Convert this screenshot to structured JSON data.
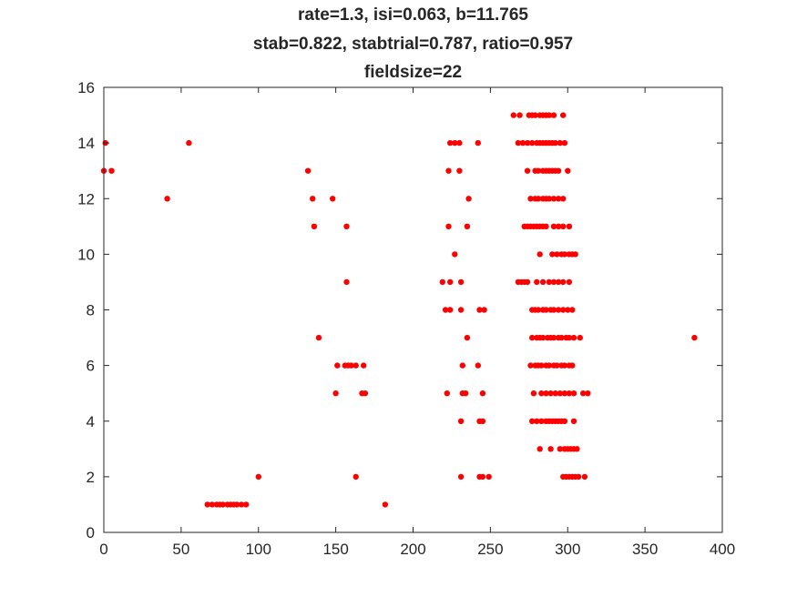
{
  "chart_data": {
    "type": "scatter",
    "title": [
      "rate=1.3, isi=0.063, b=11.765",
      "stab=0.822, stabtrial=0.787, ratio=0.957",
      "fieldsize=22"
    ],
    "xlabel": "",
    "ylabel": "",
    "xlim": [
      0,
      400
    ],
    "ylim": [
      0,
      16
    ],
    "xticks": [
      0,
      50,
      100,
      150,
      200,
      250,
      300,
      350,
      400
    ],
    "yticks": [
      0,
      2,
      4,
      6,
      8,
      10,
      12,
      14,
      16
    ],
    "grid": false,
    "marker_color": "#ff0000",
    "axis_color": "#262626",
    "points": [
      [
        67,
        1
      ],
      [
        70,
        1
      ],
      [
        73,
        1
      ],
      [
        75,
        1
      ],
      [
        77,
        1
      ],
      [
        80,
        1
      ],
      [
        82,
        1
      ],
      [
        84,
        1
      ],
      [
        86,
        1
      ],
      [
        89,
        1
      ],
      [
        92,
        1
      ],
      [
        182,
        1
      ],
      [
        100,
        2
      ],
      [
        163,
        2
      ],
      [
        231,
        2
      ],
      [
        243,
        2
      ],
      [
        245,
        2
      ],
      [
        249,
        2
      ],
      [
        297,
        2
      ],
      [
        299,
        2
      ],
      [
        301,
        2
      ],
      [
        303,
        2
      ],
      [
        305,
        2
      ],
      [
        307,
        2
      ],
      [
        311,
        2
      ],
      [
        282,
        3
      ],
      [
        289,
        3
      ],
      [
        295,
        3
      ],
      [
        298,
        3
      ],
      [
        300,
        3
      ],
      [
        302,
        3
      ],
      [
        304,
        3
      ],
      [
        306,
        3
      ],
      [
        231,
        4
      ],
      [
        243,
        4
      ],
      [
        245,
        4
      ],
      [
        277,
        4
      ],
      [
        280,
        4
      ],
      [
        283,
        4
      ],
      [
        286,
        4
      ],
      [
        288,
        4
      ],
      [
        290,
        4
      ],
      [
        292,
        4
      ],
      [
        294,
        4
      ],
      [
        296,
        4
      ],
      [
        298,
        4
      ],
      [
        304,
        4
      ],
      [
        150,
        5
      ],
      [
        167,
        5
      ],
      [
        169,
        5
      ],
      [
        222,
        5
      ],
      [
        232,
        5
      ],
      [
        234,
        5
      ],
      [
        245,
        5
      ],
      [
        278,
        5
      ],
      [
        283,
        5
      ],
      [
        286,
        5
      ],
      [
        289,
        5
      ],
      [
        292,
        5
      ],
      [
        295,
        5
      ],
      [
        298,
        5
      ],
      [
        301,
        5
      ],
      [
        304,
        5
      ],
      [
        310,
        5
      ],
      [
        313,
        5
      ],
      [
        151,
        6
      ],
      [
        156,
        6
      ],
      [
        158,
        6
      ],
      [
        160,
        6
      ],
      [
        163,
        6
      ],
      [
        168,
        6
      ],
      [
        232,
        6
      ],
      [
        242,
        6
      ],
      [
        276,
        6
      ],
      [
        279,
        6
      ],
      [
        281,
        6
      ],
      [
        283,
        6
      ],
      [
        286,
        6
      ],
      [
        288,
        6
      ],
      [
        291,
        6
      ],
      [
        293,
        6
      ],
      [
        296,
        6
      ],
      [
        298,
        6
      ],
      [
        301,
        6
      ],
      [
        303,
        6
      ],
      [
        139,
        7
      ],
      [
        235,
        7
      ],
      [
        277,
        7
      ],
      [
        280,
        7
      ],
      [
        282,
        7
      ],
      [
        284,
        7
      ],
      [
        287,
        7
      ],
      [
        289,
        7
      ],
      [
        291,
        7
      ],
      [
        294,
        7
      ],
      [
        296,
        7
      ],
      [
        299,
        7
      ],
      [
        301,
        7
      ],
      [
        304,
        7
      ],
      [
        308,
        7
      ],
      [
        382,
        7
      ],
      [
        221,
        8
      ],
      [
        224,
        8
      ],
      [
        231,
        8
      ],
      [
        243,
        8
      ],
      [
        246,
        8
      ],
      [
        277,
        8
      ],
      [
        279,
        8
      ],
      [
        281,
        8
      ],
      [
        284,
        8
      ],
      [
        286,
        8
      ],
      [
        289,
        8
      ],
      [
        291,
        8
      ],
      [
        294,
        8
      ],
      [
        297,
        8
      ],
      [
        300,
        8
      ],
      [
        303,
        8
      ],
      [
        157,
        9
      ],
      [
        219,
        9
      ],
      [
        224,
        9
      ],
      [
        231,
        9
      ],
      [
        268,
        9
      ],
      [
        270,
        9
      ],
      [
        272,
        9
      ],
      [
        274,
        9
      ],
      [
        280,
        9
      ],
      [
        284,
        9
      ],
      [
        288,
        9
      ],
      [
        291,
        9
      ],
      [
        294,
        9
      ],
      [
        297,
        9
      ],
      [
        301,
        9
      ],
      [
        227,
        10
      ],
      [
        282,
        10
      ],
      [
        290,
        10
      ],
      [
        293,
        10
      ],
      [
        296,
        10
      ],
      [
        298,
        10
      ],
      [
        301,
        10
      ],
      [
        303,
        10
      ],
      [
        305,
        10
      ],
      [
        136,
        11
      ],
      [
        157,
        11
      ],
      [
        223,
        11
      ],
      [
        235,
        11
      ],
      [
        272,
        11
      ],
      [
        274,
        11
      ],
      [
        276,
        11
      ],
      [
        278,
        11
      ],
      [
        280,
        11
      ],
      [
        282,
        11
      ],
      [
        284,
        11
      ],
      [
        286,
        11
      ],
      [
        291,
        11
      ],
      [
        294,
        11
      ],
      [
        297,
        11
      ],
      [
        301,
        11
      ],
      [
        41,
        12
      ],
      [
        135,
        12
      ],
      [
        148,
        12
      ],
      [
        236,
        12
      ],
      [
        276,
        12
      ],
      [
        279,
        12
      ],
      [
        281,
        12
      ],
      [
        284,
        12
      ],
      [
        286,
        12
      ],
      [
        288,
        12
      ],
      [
        291,
        12
      ],
      [
        294,
        12
      ],
      [
        297,
        12
      ],
      [
        0,
        13
      ],
      [
        5,
        13
      ],
      [
        132,
        13
      ],
      [
        223,
        13
      ],
      [
        230,
        13
      ],
      [
        274,
        13
      ],
      [
        279,
        13
      ],
      [
        281,
        13
      ],
      [
        284,
        13
      ],
      [
        286,
        13
      ],
      [
        288,
        13
      ],
      [
        290,
        13
      ],
      [
        292,
        13
      ],
      [
        294,
        13
      ],
      [
        300,
        13
      ],
      [
        1,
        14
      ],
      [
        55,
        14
      ],
      [
        224,
        14
      ],
      [
        227,
        14
      ],
      [
        230,
        14
      ],
      [
        242,
        14
      ],
      [
        268,
        14
      ],
      [
        271,
        14
      ],
      [
        274,
        14
      ],
      [
        277,
        14
      ],
      [
        280,
        14
      ],
      [
        282,
        14
      ],
      [
        284,
        14
      ],
      [
        286,
        14
      ],
      [
        288,
        14
      ],
      [
        290,
        14
      ],
      [
        292,
        14
      ],
      [
        295,
        14
      ],
      [
        298,
        14
      ],
      [
        265,
        15
      ],
      [
        269,
        15
      ],
      [
        275,
        15
      ],
      [
        277,
        15
      ],
      [
        279,
        15
      ],
      [
        282,
        15
      ],
      [
        284,
        15
      ],
      [
        286,
        15
      ],
      [
        288,
        15
      ],
      [
        291,
        15
      ],
      [
        297,
        15
      ]
    ]
  }
}
